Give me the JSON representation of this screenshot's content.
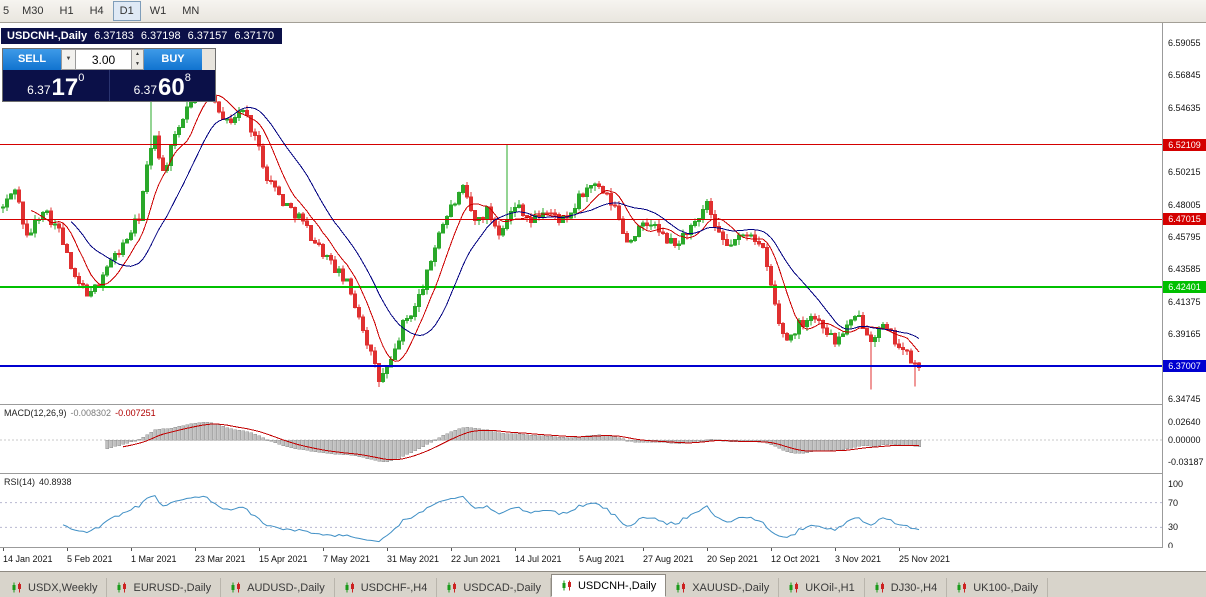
{
  "toolbar": {
    "timeframes": [
      {
        "label": "5",
        "active": false
      },
      {
        "label": "M30",
        "active": false
      },
      {
        "label": "H1",
        "active": false
      },
      {
        "label": "H4",
        "active": false
      },
      {
        "label": "D1",
        "active": true
      },
      {
        "label": "W1",
        "active": false
      },
      {
        "label": "MN",
        "active": false
      }
    ]
  },
  "chart_header": {
    "symbol_title": "USDCNH-,Daily",
    "quote_open": "6.37183",
    "quote_high": "6.37198",
    "quote_low": "6.37157",
    "quote_close": "6.37170"
  },
  "trade_panel": {
    "sell_label": "SELL",
    "buy_label": "BUY",
    "volume": "3.00",
    "sell_price": {
      "prefix": "6.37",
      "big": "17",
      "sup": "0"
    },
    "buy_price": {
      "prefix": "6.37",
      "big": "60",
      "sup": "8"
    }
  },
  "price_axis": {
    "ticks": [
      {
        "text": "6.59055",
        "value": 6.59055
      },
      {
        "text": "6.56845",
        "value": 6.56845
      },
      {
        "text": "6.54635",
        "value": 6.54635
      },
      {
        "text": "6.50215",
        "value": 6.50215
      },
      {
        "text": "6.48005",
        "value": 6.48005
      },
      {
        "text": "6.45795",
        "value": 6.45795
      },
      {
        "text": "6.43585",
        "value": 6.43585
      },
      {
        "text": "6.41375",
        "value": 6.41375
      },
      {
        "text": "6.39165",
        "value": 6.39165
      },
      {
        "text": "6.34745",
        "value": 6.34745
      }
    ]
  },
  "hlines": [
    {
      "label": "6.52109",
      "value": 6.52109,
      "color": "#d40000",
      "thickness": 1
    },
    {
      "label": "6.47015",
      "value": 6.47015,
      "color": "#d40000",
      "thickness": 1
    },
    {
      "label": "6.42401",
      "value": 6.42401,
      "color": "#00c000",
      "thickness": 2
    },
    {
      "label": "6.37007",
      "value": 6.37007,
      "color": "#0000d0",
      "thickness": 2
    }
  ],
  "macd_panel": {
    "name": "MACD(12,26,9)",
    "value_main": "-0.008302",
    "value_signal": "-0.007251",
    "ticks": [
      {
        "text": "0.02640",
        "value": 0.0264
      },
      {
        "text": "0.00000",
        "value": 0
      },
      {
        "text": "-0.03187",
        "value": -0.03187
      }
    ]
  },
  "rsi_panel": {
    "name": "RSI(14)",
    "value": "40.8938",
    "ticks": [
      {
        "text": "100",
        "value": 100
      },
      {
        "text": "70",
        "value": 70
      },
      {
        "text": "30",
        "value": 30
      },
      {
        "text": "0",
        "value": 0
      }
    ],
    "levels": [
      70,
      30
    ]
  },
  "date_axis": {
    "labels": [
      "14 Jan 2021",
      "5 Feb 2021",
      "1 Mar 2021",
      "23 Mar 2021",
      "15 Apr 2021",
      "7 May 2021",
      "31 May 2021",
      "22 Jun 2021",
      "14 Jul 2021",
      "5 Aug 2021",
      "27 Aug 2021",
      "20 Sep 2021",
      "12 Oct 2021",
      "3 Nov 2021",
      "25 Nov 2021"
    ],
    "tick_interval": 16
  },
  "tabs": [
    {
      "label": "USDX,Weekly",
      "active": false
    },
    {
      "label": "EURUSD-,Daily",
      "active": false
    },
    {
      "label": "AUDUSD-,Daily",
      "active": false
    },
    {
      "label": "USDCHF-,H4",
      "active": false
    },
    {
      "label": "USDCAD-,Daily",
      "active": false
    },
    {
      "label": "USDCNH-,Daily",
      "active": true
    },
    {
      "label": "XAUUSD-,Daily",
      "active": false
    },
    {
      "label": "UKOil-,H1",
      "active": false
    },
    {
      "label": "DJ30-,H4",
      "active": false
    },
    {
      "label": "UK100-,Daily",
      "active": false
    }
  ],
  "chart_data": {
    "type": "candlestick",
    "symbol": "USDCNH-",
    "timeframe": "Daily",
    "candle_count": 230,
    "price_axis_range": [
      6.34745,
      6.59055
    ],
    "up_color": "#2aa82a",
    "down_color": "#e03030",
    "waypoints": [
      [
        0,
        6.478
      ],
      [
        3,
        6.492
      ],
      [
        6,
        6.457
      ],
      [
        10,
        6.478
      ],
      [
        14,
        6.462
      ],
      [
        18,
        6.428
      ],
      [
        22,
        6.418
      ],
      [
        26,
        6.438
      ],
      [
        30,
        6.452
      ],
      [
        34,
        6.472
      ],
      [
        36,
        6.505
      ],
      [
        38,
        6.528
      ],
      [
        40,
        6.502
      ],
      [
        43,
        6.525
      ],
      [
        46,
        6.548
      ],
      [
        50,
        6.563
      ],
      [
        53,
        6.552
      ],
      [
        56,
        6.536
      ],
      [
        60,
        6.545
      ],
      [
        63,
        6.527
      ],
      [
        66,
        6.5
      ],
      [
        70,
        6.482
      ],
      [
        74,
        6.472
      ],
      [
        78,
        6.455
      ],
      [
        82,
        6.44
      ],
      [
        86,
        6.426
      ],
      [
        89,
        6.405
      ],
      [
        92,
        6.378
      ],
      [
        94,
        6.36
      ],
      [
        97,
        6.372
      ],
      [
        100,
        6.398
      ],
      [
        103,
        6.41
      ],
      [
        106,
        6.432
      ],
      [
        109,
        6.462
      ],
      [
        112,
        6.478
      ],
      [
        115,
        6.49
      ],
      [
        118,
        6.468
      ],
      [
        121,
        6.476
      ],
      [
        124,
        6.462
      ],
      [
        126,
        6.472
      ],
      [
        129,
        6.48
      ],
      [
        132,
        6.468
      ],
      [
        135,
        6.476
      ],
      [
        138,
        6.472
      ],
      [
        141,
        6.468
      ],
      [
        144,
        6.484
      ],
      [
        147,
        6.494
      ],
      [
        150,
        6.488
      ],
      [
        153,
        6.478
      ],
      [
        156,
        6.455
      ],
      [
        159,
        6.463
      ],
      [
        162,
        6.468
      ],
      [
        165,
        6.458
      ],
      [
        168,
        6.452
      ],
      [
        171,
        6.462
      ],
      [
        174,
        6.468
      ],
      [
        176,
        6.482
      ],
      [
        178,
        6.462
      ],
      [
        181,
        6.452
      ],
      [
        184,
        6.457
      ],
      [
        187,
        6.462
      ],
      [
        190,
        6.448
      ],
      [
        192,
        6.425
      ],
      [
        194,
        6.398
      ],
      [
        196,
        6.388
      ],
      [
        199,
        6.398
      ],
      [
        202,
        6.405
      ],
      [
        205,
        6.398
      ],
      [
        208,
        6.386
      ],
      [
        211,
        6.397
      ],
      [
        214,
        6.403
      ],
      [
        217,
        6.39
      ],
      [
        220,
        6.396
      ],
      [
        223,
        6.388
      ],
      [
        226,
        6.377
      ],
      [
        229,
        6.367
      ]
    ],
    "spikes": [
      {
        "i": 37,
        "h": 6.556
      },
      {
        "i": 50,
        "h": 6.576
      },
      {
        "i": 94,
        "l": 6.3555
      },
      {
        "i": 126,
        "h": 6.521
      },
      {
        "i": 217,
        "l": 6.354
      },
      {
        "i": 228,
        "l": 6.356
      }
    ],
    "ma_fast": {
      "period": 8,
      "color": "#cc0000"
    },
    "ma_slow": {
      "period": 18,
      "color": "#000080"
    },
    "macd": {
      "fast": 12,
      "slow": 26,
      "signal": 9,
      "hist_color": "#c0c0c0",
      "signal_color": "#c00000"
    },
    "rsi": {
      "period": 14,
      "color": "#3f8fc5"
    }
  }
}
